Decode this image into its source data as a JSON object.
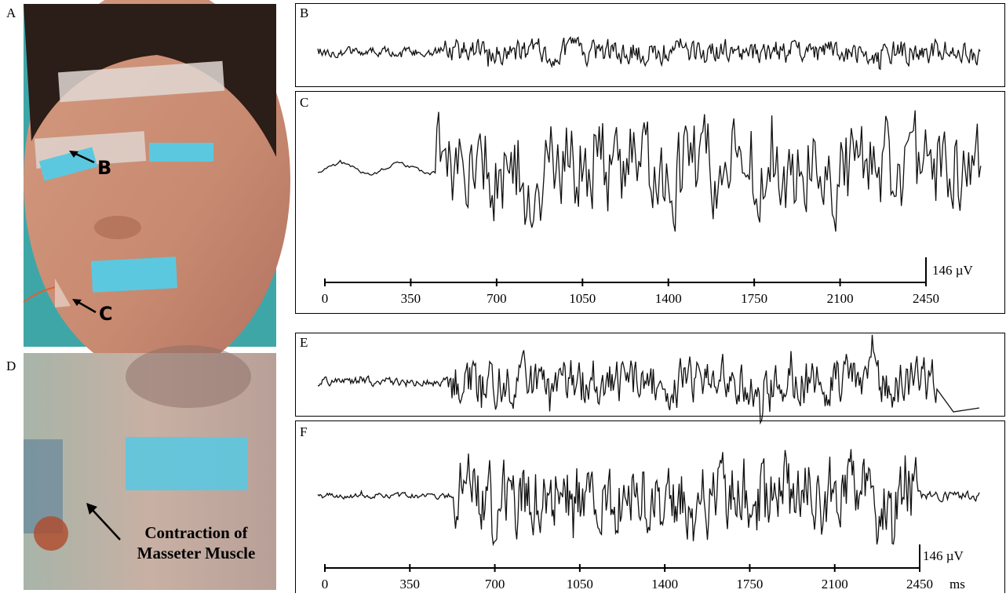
{
  "panels": {
    "a": {
      "label": "A",
      "markers": [
        "B",
        "C"
      ]
    },
    "b": {
      "label": "B"
    },
    "c": {
      "label": "C"
    },
    "d": {
      "label": "D",
      "annotation": [
        "Contraction of",
        "Masseter Muscle"
      ]
    },
    "e": {
      "label": "E"
    },
    "f": {
      "label": "F"
    }
  },
  "c_axis": {
    "ticks": [
      0,
      350,
      700,
      1050,
      1400,
      1750,
      2100,
      2450
    ],
    "scale_bar": "146 µV"
  },
  "f_axis": {
    "ticks": [
      0,
      350,
      700,
      1050,
      1400,
      1750,
      2100,
      2450
    ],
    "scale_bar": "146 µV",
    "unit": "ms"
  }
}
